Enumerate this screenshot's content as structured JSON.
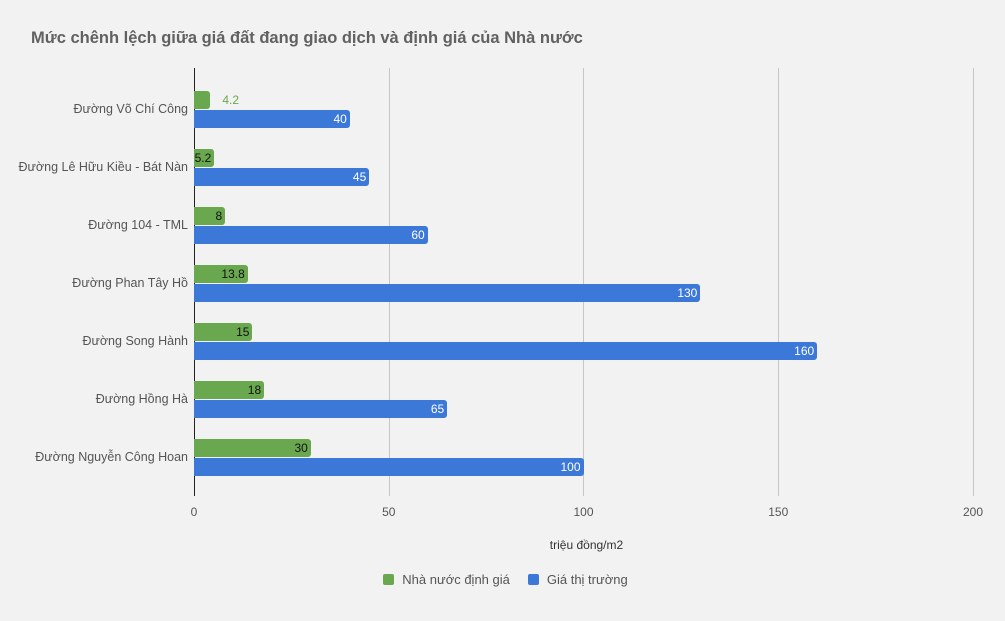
{
  "chart_data": {
    "type": "bar",
    "orientation": "horizontal",
    "title": "Mức chênh lệch giữa giá đất đang giao dịch và định giá của Nhà nước",
    "xlabel": "triệu đồng/m2",
    "ylabel": "",
    "xlim": [
      0,
      200
    ],
    "x_ticks": [
      "0",
      "50",
      "100",
      "150",
      "200"
    ],
    "grid": true,
    "legend_position": "bottom",
    "categories": [
      "Đường Võ Chí Công",
      "Đường Lê Hữu Kiều - Bát Nàn",
      "Đường 104 - TML",
      "Đường Phan Tây Hồ",
      "Đường Song Hành",
      "Đường Hồng Hà",
      "Đường Nguyễn Công Hoan"
    ],
    "series": [
      {
        "name": "Nhà nước định giá",
        "color": "#6aa84f",
        "values": [
          4.2,
          5.2,
          8,
          13.8,
          15,
          18,
          30
        ],
        "labels": [
          "4.2",
          "5.2",
          "8",
          "13.8",
          "15",
          "18",
          "30"
        ]
      },
      {
        "name": "Giá thị trường",
        "color": "#3c78d8",
        "values": [
          40,
          45,
          60,
          130,
          160,
          65,
          100
        ],
        "labels": [
          "40",
          "45",
          "60",
          "130",
          "160",
          "65",
          "100"
        ]
      }
    ]
  }
}
